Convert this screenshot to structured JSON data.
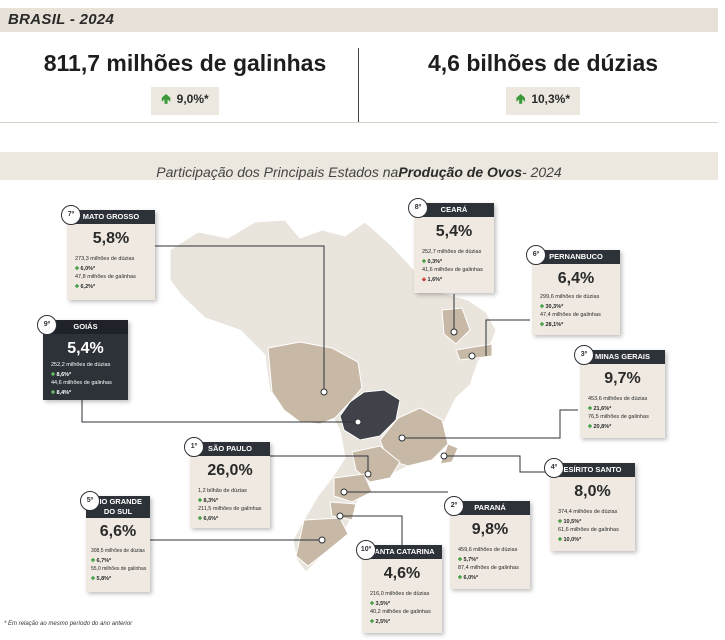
{
  "header": {
    "title": "BRASIL - 2024"
  },
  "kpis": [
    {
      "value": "811,7 milhões de galinhas",
      "change": "9,0%*"
    },
    {
      "value": "4,6 bilhões de dúzias",
      "change": "10,3%*"
    }
  ],
  "section_title": {
    "prefix": "Participação dos Principais Estados na ",
    "bold": "Produção de Ovos",
    "suffix": " - 2024"
  },
  "states": {
    "mato_grosso": {
      "rank": "7º",
      "name": "MATO GROSSO",
      "share": "5,8%",
      "dozens": "273,3 milhões de dúzias",
      "dozens_change": "6,0%*",
      "hens": "47,8 milhões de galinhas",
      "hens_change": "6,2%*"
    },
    "ceara": {
      "rank": "8º",
      "name": "CEARÁ",
      "share": "5,4%",
      "dozens": "252,7 milhões de dúzias",
      "dozens_change": "0,3%*",
      "hens": "41,6 milhões de galinhas",
      "hens_change": "1,6%*"
    },
    "pernambuco": {
      "rank": "6º",
      "name": "PERNANBUCO",
      "share": "6,4%",
      "dozens": "299,6 milhões de dúzias",
      "dozens_change": "30,3%*",
      "hens": "47,4 milhões de galinhas",
      "hens_change": "28,1%*"
    },
    "goias": {
      "rank": "9º",
      "name": "GOIÁS",
      "share": "5,4%",
      "dozens": "252,2 milhões de dúzias",
      "dozens_change": "8,6%*",
      "hens": "44,6 milhões de galinhas",
      "hens_change": "8,4%*"
    },
    "minas_gerais": {
      "rank": "3º",
      "name": "MINAS GERAIS",
      "share": "9,7%",
      "dozens": "453,6 milhões de dúzias",
      "dozens_change": "21,6%*",
      "hens": "76,5 milhões de galinhas",
      "hens_change": "20,8%*"
    },
    "sao_paulo": {
      "rank": "1º",
      "name": "SÃO PAULO",
      "share": "26,0%",
      "dozens": "1,2 bilhão de dúzias",
      "dozens_change": "8,3%*",
      "hens": "211,5 milhões de galinhas",
      "hens_change": "6,6%*"
    },
    "espirito_santo": {
      "rank": "4º",
      "name": "ESÍRITO SANTO",
      "share": "8,0%",
      "dozens": "374,4 milhões de dúzias",
      "dozens_change": "10,5%*",
      "hens": "61,6 milhões de galinhas",
      "hens_change": "10,0%*"
    },
    "rio_grande_do_sul": {
      "rank": "5º",
      "name_line1": "RIO GRANDE",
      "name_line2": "DO SUL",
      "share": "6,6%",
      "dozens": "308,5 milhões de dúzias",
      "dozens_change": "6,7%*",
      "hens": "55,0 milhões de galinhas",
      "hens_change": "5,8%*"
    },
    "parana": {
      "rank": "2º",
      "name": "PARANÁ",
      "share": "9,8%",
      "dozens": "459,6 milhões de dúzias",
      "dozens_change": "5,7%*",
      "hens": "87,4 milhões de galinhas",
      "hens_change": "6,0%*"
    },
    "santa_catarina": {
      "rank": "10º",
      "name": "SANTA CATARINA",
      "share": "4,6%",
      "dozens": "216,0 milhões de dúzias",
      "dozens_change": "3,5%*",
      "hens": "40,2 milhões de galinhas",
      "hens_change": "2,5%*"
    }
  },
  "footnote": "* Em relação ao mesmo período do ano anterior",
  "colors": {
    "map_base": "#e9e4dc",
    "map_highlight": "#c8b9a6",
    "goias": "#3f4349",
    "card_bg": "#efe9e1",
    "card_header": "#2d3138",
    "up": "#3a9a3a",
    "down": "#c9302c"
  }
}
